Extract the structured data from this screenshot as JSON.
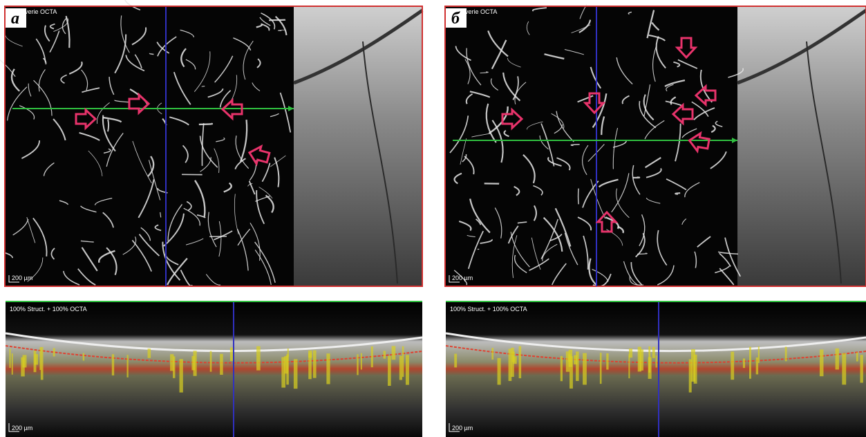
{
  "panels": [
    {
      "label": "а",
      "angio_caption": "verie OCTA",
      "angio_scale": "200 µm",
      "bscan_caption": "100% Struct. + 100% OCTA",
      "bscan_scale": "200 µm"
    },
    {
      "label": "б",
      "angio_caption": "verie OCTA",
      "angio_scale": "200 µm",
      "bscan_caption": "100% Struct. + 100% OCTA",
      "bscan_scale": "200 µm"
    }
  ]
}
